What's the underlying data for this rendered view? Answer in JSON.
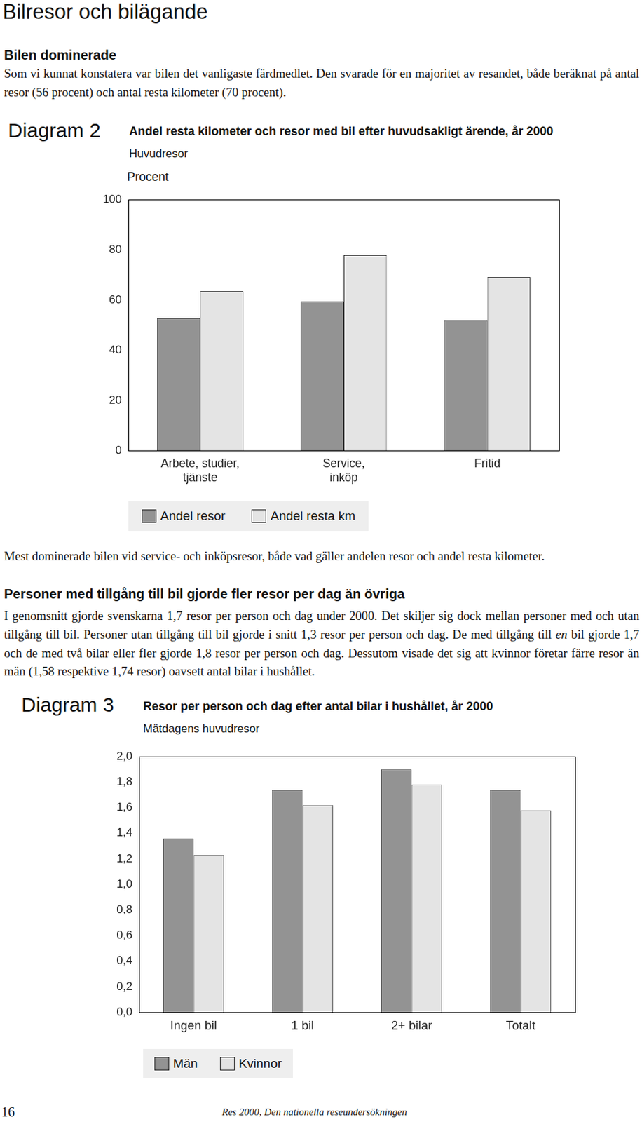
{
  "page_title": "Bilresor och bilägande",
  "heading_1": "Bilen dominerade",
  "paragraph_1": "Som vi kunnat konstatera var bilen det vanligaste färdmedlet. Den svarade för en majoritet av resandet, både beräknat på antal resor (56 procent) och antal resta kilometer (70 procent).",
  "chart_data": [
    {
      "label": "Diagram 2",
      "type": "bar",
      "title": "Andel resta kilometer och resor med bil efter huvudsakligt ärende, år 2000",
      "subtitle": "Huvudresor",
      "y_label": "Procent",
      "categories": [
        "Arbete, studier,\ntjänste",
        "Service,\ninköp",
        "Fritid"
      ],
      "series": [
        {
          "name": "Andel resor",
          "color": "#939393",
          "values": [
            52.8,
            59.4,
            51.9
          ]
        },
        {
          "name": "Andel resta km",
          "color": "#e4e4e4",
          "values": [
            63.5,
            77.9,
            69.1
          ]
        }
      ],
      "ylim": [
        0,
        100
      ],
      "yticks": [
        0,
        20,
        40,
        60,
        80,
        100
      ],
      "grid": false,
      "legend": "bottom"
    },
    {
      "label": "Diagram 3",
      "type": "bar",
      "title": "Resor per person och dag efter antal bilar i hushållet, år 2000",
      "subtitle": "Mätdagens huvudresor",
      "categories": [
        "Ingen bil",
        "1 bil",
        "2+ bilar",
        "Totalt"
      ],
      "series": [
        {
          "name": "Män",
          "color": "#939393",
          "values": [
            1.36,
            1.74,
            1.9,
            1.74
          ]
        },
        {
          "name": "Kvinnor",
          "color": "#e4e4e4",
          "values": [
            1.23,
            1.62,
            1.78,
            1.58
          ]
        }
      ],
      "ylim": [
        0,
        2
      ],
      "yticks": [
        {
          "value": 0,
          "label": "0,0"
        },
        {
          "value": 0.2,
          "label": "0,2"
        },
        {
          "value": 0.4,
          "label": "0,4"
        },
        {
          "value": 0.6,
          "label": "0,6"
        },
        {
          "value": 0.8,
          "label": "0,8"
        },
        {
          "value": 1,
          "label": "1,0"
        },
        {
          "value": 1.2,
          "label": "1,2"
        },
        {
          "value": 1.4,
          "label": "1,4"
        },
        {
          "value": 1.6,
          "label": "1,6"
        },
        {
          "value": 1.8,
          "label": "1,8"
        },
        {
          "value": 2,
          "label": "2,0"
        }
      ],
      "grid": false,
      "legend": "bottom"
    }
  ],
  "caption": "Mest dominerade bilen vid service- och inköpsresor, både vad gäller andelen resor och andel resta kilometer.",
  "heading_2": "Personer med tillgång till bil gjorde fler resor per dag än övriga",
  "paragraph_2": [
    {
      "text": "I genomsnitt gjorde svenskarna 1,7 resor per person och dag under 2000. Det skiljer sig dock mellan personer med och utan tillgång till bil. Personer utan tillgång till bil gjorde i snitt 1,3 resor per person och dag. De med tillgång till "
    },
    {
      "text": "en",
      "emphasis": true
    },
    {
      "text": " bil gjorde 1,7 och de med två bilar eller fler gjorde 1,8 resor per person och dag. Dessutom visade det sig att kvinnor företar färre resor än män (1,58 respektive 1,74 resor) oavsett antal bilar i hushållet."
    }
  ],
  "footer": {
    "page_number": 16,
    "text": "Res 2000, Den nationella reseundersökningen"
  }
}
